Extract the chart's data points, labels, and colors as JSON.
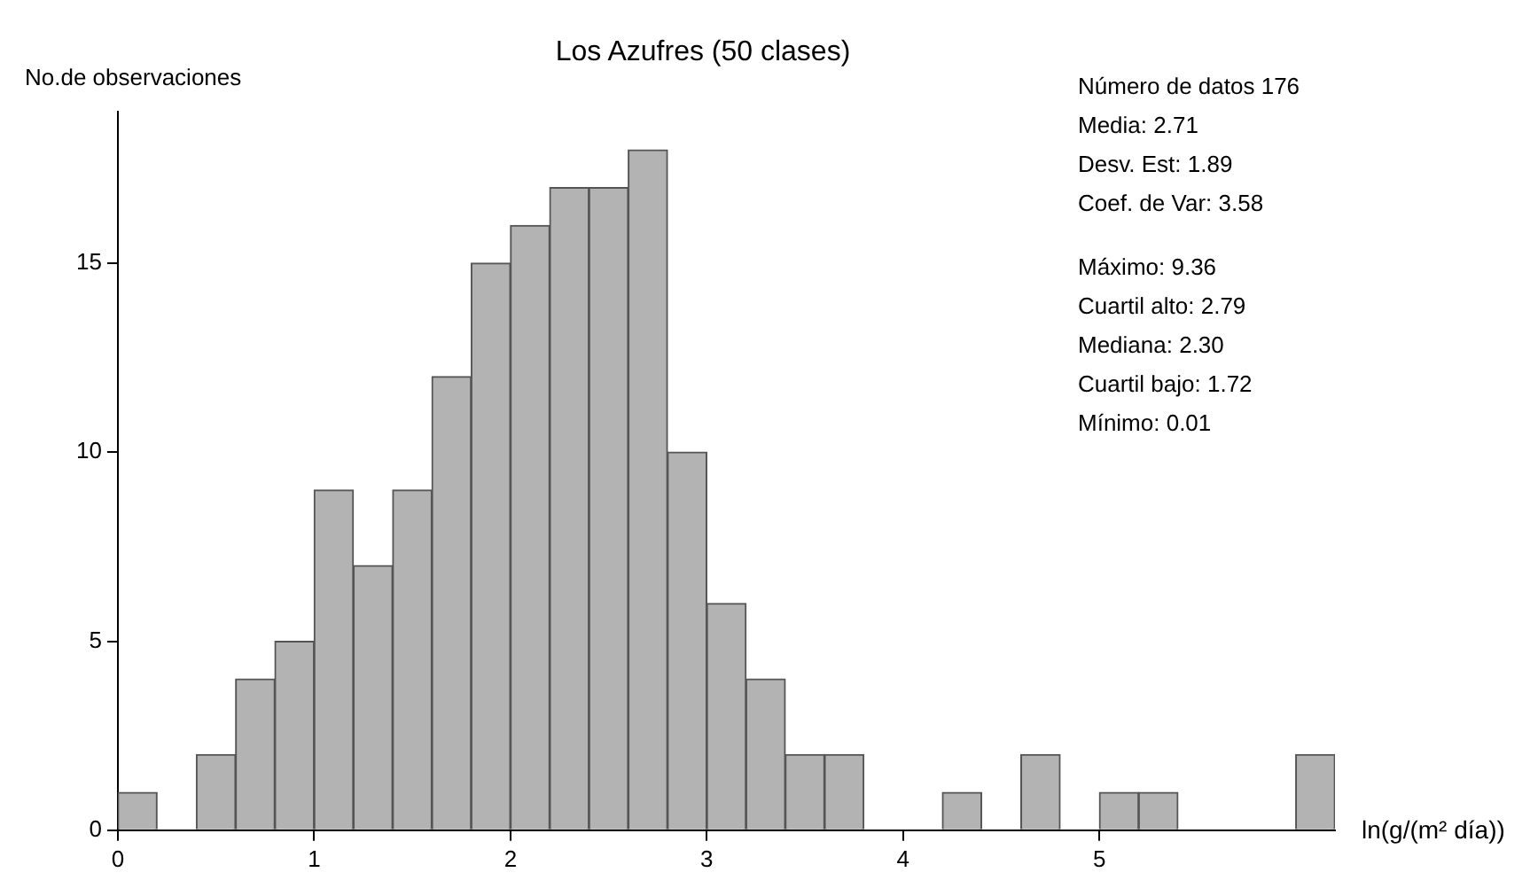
{
  "chart_data": {
    "type": "histogram",
    "title": "Los Azufres (50 clases)",
    "ylabel": "No.de observaciones",
    "xlabel": "ln(g/(m² día))",
    "bins": [
      0,
      0.2,
      0.4,
      0.6,
      0.8,
      1.0,
      1.2,
      1.4,
      1.6,
      1.8,
      2.0,
      2.2,
      2.4,
      2.6,
      2.8,
      3.0,
      3.2,
      3.4,
      3.6,
      3.8,
      4.0,
      4.2,
      4.4,
      4.6,
      4.8,
      5.0,
      5.2,
      5.4,
      5.6,
      5.8,
      6.0,
      6.2
    ],
    "values": [
      1,
      0,
      2,
      4,
      5,
      9,
      7,
      9,
      12,
      15,
      16,
      17,
      17,
      18,
      10,
      6,
      4,
      2,
      2,
      0,
      0,
      1,
      0,
      2,
      0,
      1,
      1,
      0,
      0,
      0,
      2
    ],
    "color": "#b3b3b3",
    "xlim": [
      0,
      6.2
    ],
    "xticks": [
      0,
      1,
      2,
      3,
      4,
      5
    ],
    "ylim": [
      0,
      19
    ],
    "yticks": [
      0,
      5,
      10,
      15
    ],
    "grid": false,
    "legend": false,
    "annotations": [
      "Número de datos 176",
      "Media: 2.71",
      "Desv. Est: 1.89",
      "Coef. de Var: 3.58",
      "Máximo: 9.36",
      "Cuartil alto: 2.79",
      "Mediana: 2.30",
      "Cuartil bajo: 1.72",
      "Mínimo: 0.01"
    ]
  }
}
